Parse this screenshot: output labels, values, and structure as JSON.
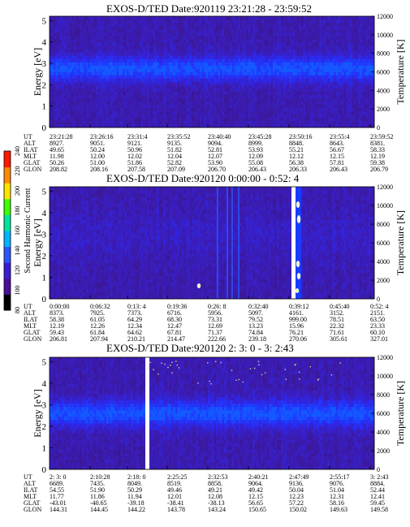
{
  "colorbar": {
    "label": "Second Harmonic Current",
    "ticks": [
      "80",
      "100",
      "120",
      "140",
      "160",
      "180",
      "200",
      "220",
      "240"
    ],
    "colors": [
      "#000000",
      "#4b0f9a",
      "#3a1cd6",
      "#2a56ff",
      "#00b4ff",
      "#00e4a0",
      "#3cff00",
      "#ffe400",
      "#ff8a00",
      "#ff1a00"
    ]
  },
  "panels": [
    {
      "title": "EXOS-D/TED   Date:920119  23:21:28 - 23:59:52",
      "ylabel_left": "Energy [eV]",
      "ylabel_right": "Temperature [K]",
      "y_ticks": [
        "0",
        "1",
        "2",
        "3",
        "4",
        "5"
      ],
      "temp_ticks": [
        "0",
        "2000",
        "4000",
        "6000",
        "8000",
        "10000",
        "12000"
      ],
      "aux_labels": [
        "UT",
        "ALT",
        "ILAT",
        "MLT",
        "GLAT",
        "GLON"
      ],
      "aux_values": [
        [
          "23:21:28",
          "23:26:16",
          "23:31:4",
          "23:35:52",
          "23:40:40",
          "23:45:28",
          "23:50:16",
          "23:55:4",
          "23:59:52"
        ],
        [
          "8927.",
          "9051.",
          "9121.",
          "9135.",
          "9094.",
          "8999.",
          "8848.",
          "8643.",
          "8381."
        ],
        [
          "49.65",
          "50.24",
          "50.96",
          "51.82",
          "52.81",
          "53.93",
          "55.21",
          "56.67",
          "58.33"
        ],
        [
          "11.98",
          "12.00",
          "12.02",
          "12.04",
          "12.07",
          "12.09",
          "12.12",
          "12.15",
          "12.19"
        ],
        [
          "50.26",
          "51.00",
          "51.86",
          "52.82",
          "53.90",
          "55.08",
          "56.38",
          "57.81",
          "59.38"
        ],
        [
          "208.82",
          "208.16",
          "207.58",
          "207.09",
          "206.70",
          "206.43",
          "206.33",
          "206.43",
          "206.79"
        ]
      ]
    },
    {
      "title": "EXOS-D/TED   Date:920120  0:00:00 - 0:52: 4",
      "ylabel_left": "Energy [eV]",
      "ylabel_right": "Temperature [K]",
      "y_ticks": [
        "0",
        "1",
        "2",
        "3",
        "4",
        "5"
      ],
      "temp_ticks": [
        "0",
        "2000",
        "4000",
        "6000",
        "8000",
        "10000",
        "12000"
      ],
      "aux_labels": [
        "UT",
        "ALT",
        "ILAT",
        "MLT",
        "GLAT",
        "GLON"
      ],
      "aux_values": [
        [
          "0:00:00",
          "0:06:32",
          "0:13: 4",
          "0:19:36",
          "0:26: 8",
          "0:32:40",
          "0:39:12",
          "0:45:40",
          "0:52: 4"
        ],
        [
          "8373.",
          "7925.",
          "7373.",
          "6716.",
          "5956.",
          "5097.",
          "4161.",
          "3152.",
          "2151."
        ],
        [
          "58.38",
          "61.05",
          "64.29",
          "68.30",
          "73.31",
          "79.52",
          "999.00",
          "78.51",
          "63.50"
        ],
        [
          "12.19",
          "12.26",
          "12.34",
          "12.47",
          "12.69",
          "13.23",
          "15.96",
          "22.32",
          "23.33"
        ],
        [
          "59.43",
          "61.84",
          "64.62",
          "67.81",
          "71.37",
          "74.84",
          "76.21",
          "71.61",
          "60.10"
        ],
        [
          "206.81",
          "207.94",
          "210.21",
          "214.47",
          "222.66",
          "239.18",
          "270.06",
          "305.61",
          "327.01"
        ]
      ]
    },
    {
      "title": "EXOS-D/TED   Date:920120  2: 3: 0 - 3: 2:43",
      "ylabel_left": "Energy [eV]",
      "ylabel_right": "Temperature [K]",
      "y_ticks": [
        "0",
        "1",
        "2",
        "3",
        "4",
        "5"
      ],
      "temp_ticks": [
        "0",
        "2000",
        "4000",
        "6000",
        "8000",
        "10000",
        "12000"
      ],
      "aux_labels": [
        "UT",
        "ALT",
        "ILAT",
        "MLT",
        "GLAT",
        "GLON"
      ],
      "aux_values": [
        [
          "2: 3: 0",
          "2:10:28",
          "2:18: 0",
          "2:25:25",
          "2:32:53",
          "2:40:21",
          "2:47:49",
          "2:55:17",
          "3: 2:43"
        ],
        [
          "6689.",
          "7435.",
          "8049.",
          "8519.",
          "8858.",
          "9064.",
          "9136.",
          "9076.",
          "8884."
        ],
        [
          "54.55",
          "51.90",
          "50.29",
          "49.46",
          "49.21",
          "49.42",
          "50.04",
          "51.04",
          "52.44"
        ],
        [
          "11.77",
          "11.86",
          "11.94",
          "12.01",
          "12.08",
          "12.15",
          "12.23",
          "12.31",
          "12.41"
        ],
        [
          "-43.01",
          "-40.65",
          "-39.18",
          "-38.41",
          "-38.13",
          "56.65",
          "57.22",
          "58.16",
          "59.45"
        ],
        [
          "144.31",
          "144.45",
          "144.22",
          "143.78",
          "143.24",
          "150.65",
          "150.02",
          "149.63",
          "149.58"
        ]
      ]
    }
  ],
  "chart_data": [
    {
      "type": "heatmap",
      "title": "EXOS-D/TED   Date:920119  23:21:28 - 23:59:52",
      "xlabel": "UT",
      "ylabel": "Energy [eV]",
      "y2label": "Temperature [K]",
      "x_ticks": [
        "23:21:28",
        "23:26:16",
        "23:31:4",
        "23:35:52",
        "23:40:40",
        "23:45:28",
        "23:50:16",
        "23:55:4",
        "23:59:52"
      ],
      "ylim": [
        0,
        5.2
      ],
      "y2lim": [
        0,
        12000
      ],
      "colorbar_label": "Second Harmonic Current",
      "colorbar_range": [
        80,
        240
      ],
      "band_center_ev": 2.75,
      "band_halfwidth_ev": 0.55,
      "data_gaps": []
    },
    {
      "type": "heatmap",
      "title": "EXOS-D/TED   Date:920120  0:00:00 - 0:52: 4",
      "xlabel": "UT",
      "ylabel": "Energy [eV]",
      "y2label": "Temperature [K]",
      "x_ticks": [
        "0:00:00",
        "0:06:32",
        "0:13: 4",
        "0:19:36",
        "0:26: 8",
        "0:32:40",
        "0:39:12",
        "0:45:40",
        "0:52: 4"
      ],
      "ylim": [
        0,
        5.2
      ],
      "y2lim": [
        0,
        12000
      ],
      "colorbar_label": "Second Harmonic Current",
      "colorbar_range": [
        80,
        240
      ],
      "band_center_ev": null,
      "band_halfwidth_ev": null,
      "data_gaps": [
        0.745
      ]
    },
    {
      "type": "heatmap",
      "title": "EXOS-D/TED   Date:920120  2: 3: 0 - 3: 2:43",
      "xlabel": "UT",
      "ylabel": "Energy [eV]",
      "y2label": "Temperature [K]",
      "x_ticks": [
        "2: 3: 0",
        "2:10:28",
        "2:18: 0",
        "2:25:25",
        "2:32:53",
        "2:40:21",
        "2:47:49",
        "2:55:17",
        "3: 2:43"
      ],
      "ylim": [
        0,
        5.2
      ],
      "y2lim": [
        0,
        12000
      ],
      "colorbar_label": "Second Harmonic Current",
      "colorbar_range": [
        80,
        240
      ],
      "band_center_ev": 2.6,
      "band_halfwidth_ev": 0.6,
      "data_gaps": [
        0.255
      ]
    }
  ]
}
